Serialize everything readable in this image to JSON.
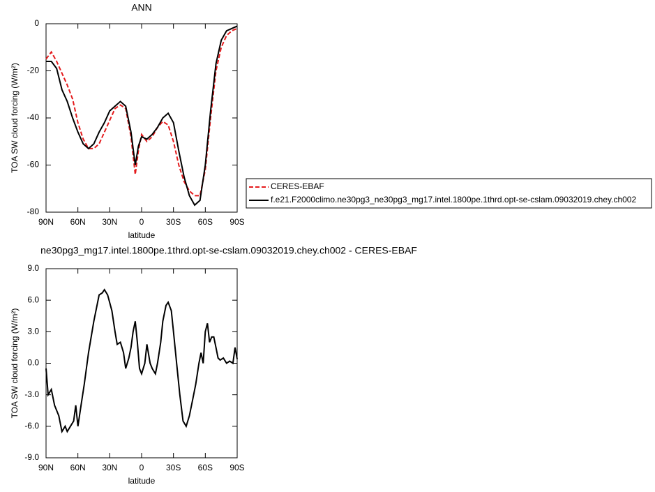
{
  "chart_data": [
    {
      "type": "line",
      "title": "ANN",
      "x_label": "latitude",
      "y_label": "TOA SW cloud forcing (W/m²)",
      "legend": "right",
      "x": [
        90,
        85,
        80,
        75,
        70,
        65,
        60,
        55,
        50,
        45,
        40,
        35,
        30,
        25,
        20,
        15,
        10,
        6,
        3,
        0,
        -5,
        -10,
        -15,
        -20,
        -25,
        -30,
        -35,
        -40,
        -45,
        -50,
        -55,
        -60,
        -65,
        -70,
        -75,
        -80,
        -85,
        -90
      ],
      "series": [
        {
          "name": "CERES-EBAF",
          "color": "#e41a1c",
          "line_style": "dashed",
          "values": [
            -15,
            -12,
            -16,
            -21,
            -26,
            -32,
            -42,
            -49,
            -53,
            -53,
            -51,
            -46,
            -41,
            -36,
            -34.5,
            -36,
            -48,
            -64,
            -54,
            -47,
            -50,
            -48,
            -44,
            -41.5,
            -43,
            -50,
            -60,
            -67,
            -71,
            -73,
            -73,
            -62,
            -40,
            -20,
            -10,
            -5,
            -3,
            -2
          ]
        },
        {
          "name": "f.e21.F2000climo.ne30pg3_ne30pg3_mg17.intel.1800pe.1thrd.opt-se-cslam.09032019.chey.ch002",
          "color": "#000000",
          "line_style": "solid",
          "values": [
            -16,
            -16,
            -19,
            -28,
            -33,
            -40,
            -46,
            -51,
            -53,
            -51,
            -46,
            -42,
            -37,
            -35,
            -33,
            -35,
            -46,
            -60,
            -52,
            -48,
            -49,
            -47,
            -44,
            -40,
            -38,
            -42,
            -54,
            -65,
            -73,
            -77,
            -75,
            -60,
            -37,
            -17,
            -7,
            -3,
            -2,
            -1
          ]
        }
      ],
      "xlim": [
        90,
        -90
      ],
      "xticks": [
        {
          "value": 90,
          "label": "90N"
        },
        {
          "value": 60,
          "label": "60N"
        },
        {
          "value": 30,
          "label": "30N"
        },
        0,
        {
          "value": -30,
          "label": "30S"
        },
        {
          "value": -60,
          "label": "60S"
        },
        {
          "value": -90,
          "label": "90S"
        }
      ],
      "ylim": [
        -80,
        0
      ],
      "yticks": [
        -80,
        -60,
        -40,
        -20,
        0
      ]
    },
    {
      "type": "line",
      "title": "ne30pg3_mg17.intel.1800pe.1thrd.opt-se-cslam.09032019.chey.ch002 - CERES-EBAF",
      "x_label": "latitude",
      "y_label": "TOA SW cloud forcing (W/m²)",
      "x": [
        90,
        88,
        85,
        82,
        78,
        75,
        72,
        70,
        67,
        64,
        62,
        60,
        57,
        54,
        50,
        45,
        40,
        37,
        35,
        32,
        28,
        25,
        23,
        20,
        17,
        15,
        12,
        10,
        8,
        6,
        4,
        2,
        0,
        -3,
        -5,
        -8,
        -10,
        -13,
        -15,
        -18,
        -20,
        -23,
        -25,
        -28,
        -30,
        -33,
        -36,
        -39,
        -42,
        -45,
        -48,
        -51,
        -54,
        -56,
        -58,
        -60,
        -62,
        -64,
        -66,
        -68,
        -70,
        -72,
        -74,
        -77,
        -80,
        -83,
        -86,
        -88,
        -90
      ],
      "series": [
        {
          "color": "#000000",
          "line_style": "solid",
          "values": [
            -0.5,
            -3,
            -2.5,
            -4,
            -5,
            -6.5,
            -6,
            -6.5,
            -6,
            -5.5,
            -4,
            -6,
            -4,
            -2,
            1,
            4,
            6.5,
            6.7,
            7,
            6.5,
            5,
            3,
            1.8,
            2,
            1,
            -0.5,
            0.5,
            1.5,
            3,
            4,
            2,
            -0.5,
            -1,
            0,
            1.8,
            0,
            -0.5,
            -1,
            0,
            2,
            4,
            5.5,
            5.8,
            5,
            3,
            0,
            -3,
            -5.5,
            -6,
            -5,
            -3.5,
            -2,
            0,
            1,
            0,
            3,
            3.8,
            2,
            2.5,
            2.5,
            1.5,
            0.5,
            0.3,
            0.5,
            0,
            0.2,
            0,
            1.5,
            0.4
          ]
        }
      ],
      "xlim": [
        90,
        -90
      ],
      "xticks": [
        {
          "value": 90,
          "label": "90N"
        },
        {
          "value": 60,
          "label": "60N"
        },
        {
          "value": 30,
          "label": "30N"
        },
        0,
        {
          "value": -30,
          "label": "30S"
        },
        {
          "value": -60,
          "label": "60S"
        },
        {
          "value": -90,
          "label": "90S"
        }
      ],
      "ylim": [
        -9,
        9
      ],
      "yticks": [
        {
          "value": -9,
          "label": "-9.0"
        },
        {
          "value": -6,
          "label": "-6.0"
        },
        {
          "value": -3,
          "label": "-3.0"
        },
        {
          "value": 0,
          "label": "0.0"
        },
        {
          "value": 3,
          "label": "3.0"
        },
        {
          "value": 6,
          "label": "6.0"
        },
        {
          "value": 9,
          "label": "9.0"
        }
      ]
    }
  ]
}
